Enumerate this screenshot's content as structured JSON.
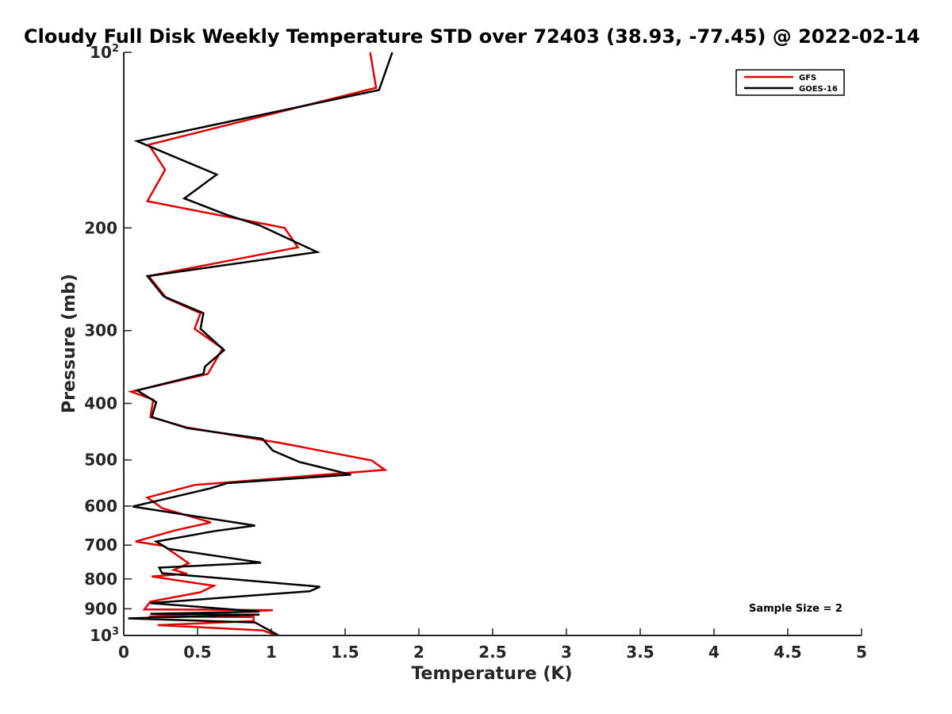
{
  "chart_data": {
    "type": "line",
    "title": "Cloudy Full Disk Weekly Temperature STD over 72403 (38.93, -77.45) @ 2022-02-14",
    "xlabel": "Temperature (K)",
    "ylabel": "Pressure (mb)",
    "xlim": [
      0,
      5
    ],
    "ylim": [
      1000,
      100
    ],
    "yscale": "log",
    "y_inverted": true,
    "grid": false,
    "legend_position": "top-right",
    "x_ticks": [
      "0",
      "0.5",
      "1",
      "1.5",
      "2",
      "2.5",
      "3",
      "3.5",
      "4",
      "4.5",
      "5"
    ],
    "y_ticks": [
      {
        "value": 100,
        "label": "10",
        "sup": "2"
      },
      {
        "value": 200,
        "label": "200",
        "sup": ""
      },
      {
        "value": 300,
        "label": "300",
        "sup": ""
      },
      {
        "value": 400,
        "label": "400",
        "sup": ""
      },
      {
        "value": 500,
        "label": "500",
        "sup": ""
      },
      {
        "value": 600,
        "label": "600",
        "sup": ""
      },
      {
        "value": 700,
        "label": "700",
        "sup": ""
      },
      {
        "value": 800,
        "label": "800",
        "sup": ""
      },
      {
        "value": 900,
        "label": "900",
        "sup": ""
      },
      {
        "value": 1000,
        "label": "10",
        "sup": "3"
      }
    ],
    "annotation": "Sample Size = 2",
    "series": [
      {
        "name": "GFS",
        "color": "#e00000",
        "points": [
          [
            1.67,
            100
          ],
          [
            1.71,
            115
          ],
          [
            0.17,
            144
          ],
          [
            0.28,
            159
          ],
          [
            0.16,
            180
          ],
          [
            1.09,
            200
          ],
          [
            1.18,
            216
          ],
          [
            0.17,
            242
          ],
          [
            0.29,
            264
          ],
          [
            0.52,
            280
          ],
          [
            0.48,
            298
          ],
          [
            0.67,
            322
          ],
          [
            0.57,
            356
          ],
          [
            0.05,
            382
          ],
          [
            0.2,
            394
          ],
          [
            0.18,
            422
          ],
          [
            0.43,
            440
          ],
          [
            1.07,
            468
          ],
          [
            1.68,
            501
          ],
          [
            1.77,
            520
          ],
          [
            0.48,
            552
          ],
          [
            0.16,
            580
          ],
          [
            0.26,
            605
          ],
          [
            0.59,
            640
          ],
          [
            0.35,
            660
          ],
          [
            0.08,
            690
          ],
          [
            0.27,
            702
          ],
          [
            0.44,
            752
          ],
          [
            0.34,
            772
          ],
          [
            0.43,
            784
          ],
          [
            0.19,
            792
          ],
          [
            0.61,
            822
          ],
          [
            0.52,
            843
          ],
          [
            0.18,
            875
          ],
          [
            0.14,
            902
          ],
          [
            1.01,
            905
          ],
          [
            0.17,
            928
          ],
          [
            0.88,
            930
          ],
          [
            0.88,
            945
          ],
          [
            0.23,
            960
          ],
          [
            0.94,
            980
          ],
          [
            1.04,
            1000
          ]
        ]
      },
      {
        "name": "GOES-16",
        "color": "#000000",
        "points": [
          [
            1.82,
            100
          ],
          [
            1.73,
            116
          ],
          [
            0.09,
            142
          ],
          [
            0.63,
            162
          ],
          [
            0.41,
            178
          ],
          [
            0.7,
            190
          ],
          [
            0.92,
            198
          ],
          [
            1.31,
            220
          ],
          [
            0.16,
            242
          ],
          [
            0.27,
            262
          ],
          [
            0.54,
            280
          ],
          [
            0.52,
            298
          ],
          [
            0.68,
            324
          ],
          [
            0.55,
            346
          ],
          [
            0.54,
            356
          ],
          [
            0.09,
            380
          ],
          [
            0.22,
            398
          ],
          [
            0.19,
            422
          ],
          [
            0.43,
            441
          ],
          [
            0.94,
            460
          ],
          [
            1.01,
            482
          ],
          [
            1.19,
            504
          ],
          [
            1.54,
            530
          ],
          [
            0.7,
            548
          ],
          [
            0.58,
            560
          ],
          [
            0.06,
            601
          ],
          [
            0.89,
            648
          ],
          [
            0.62,
            662
          ],
          [
            0.22,
            690
          ],
          [
            0.3,
            710
          ],
          [
            0.93,
            750
          ],
          [
            0.24,
            765
          ],
          [
            0.26,
            782
          ],
          [
            1.33,
            825
          ],
          [
            1.26,
            840
          ],
          [
            0.18,
            880
          ],
          [
            0.92,
            910
          ],
          [
            0.18,
            918
          ],
          [
            0.92,
            921
          ],
          [
            0.03,
            935
          ],
          [
            0.89,
            950
          ],
          [
            1.05,
            1000
          ]
        ]
      }
    ]
  }
}
